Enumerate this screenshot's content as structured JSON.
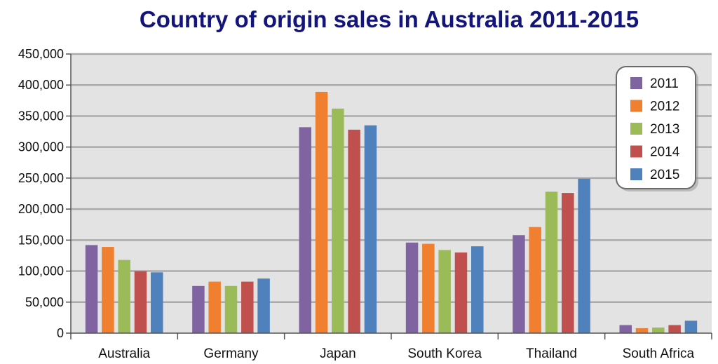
{
  "chart_data": {
    "type": "bar",
    "title": "Country of origin sales in Australia 2011-2015",
    "xlabel": "",
    "ylabel": "",
    "categories": [
      "Australia",
      "Germany",
      "Japan",
      "South Korea",
      "Thailand",
      "South Africa"
    ],
    "series": [
      {
        "name": "2011",
        "color": "#8064a2",
        "values": [
          142000,
          76000,
          332000,
          146000,
          158000,
          13000
        ]
      },
      {
        "name": "2012",
        "color": "#f07f2f",
        "values": [
          139000,
          83000,
          389000,
          144000,
          171000,
          8000
        ]
      },
      {
        "name": "2013",
        "color": "#9bbb59",
        "values": [
          118000,
          76000,
          362000,
          134000,
          228000,
          9000
        ]
      },
      {
        "name": "2014",
        "color": "#c0504d",
        "values": [
          100000,
          83000,
          328000,
          130000,
          226000,
          13000
        ]
      },
      {
        "name": "2015",
        "color": "#4f81bd",
        "values": [
          98000,
          88000,
          335000,
          140000,
          249000,
          20000
        ]
      }
    ],
    "ylim": [
      0,
      450000
    ],
    "yticks": [
      "0",
      "50,000",
      "100,000",
      "150,000",
      "200,000",
      "250,000",
      "300,000",
      "350,000",
      "400,000",
      "450,000"
    ],
    "grid": true,
    "legend_position": "top-right"
  }
}
